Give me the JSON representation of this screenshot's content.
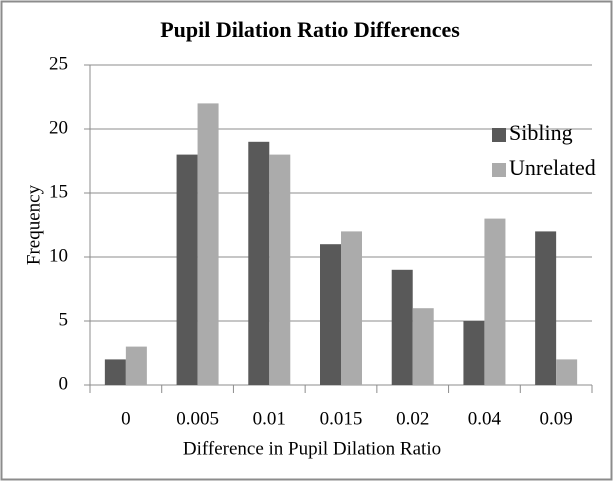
{
  "chart_data": {
    "type": "bar",
    "title": "Pupil Dilation Ratio Differences",
    "x_label": "Difference in Pupil Dilation Ratio",
    "y_label": "Frequency",
    "categories": [
      "0",
      "0.005",
      "0.01",
      "0.015",
      "0.02",
      "0.04",
      "0.09"
    ],
    "series": [
      {
        "name": "Sibling",
        "color": "#595959",
        "values": [
          2,
          18,
          19,
          11,
          9,
          5,
          12
        ]
      },
      {
        "name": "Unrelated",
        "color": "#ababab",
        "values": [
          3,
          22,
          18,
          12,
          6,
          13,
          2
        ]
      }
    ],
    "ylim": [
      0,
      25
    ],
    "yticks": [
      0,
      5,
      10,
      15,
      20,
      25
    ],
    "grid": true,
    "legend": "top-right"
  }
}
